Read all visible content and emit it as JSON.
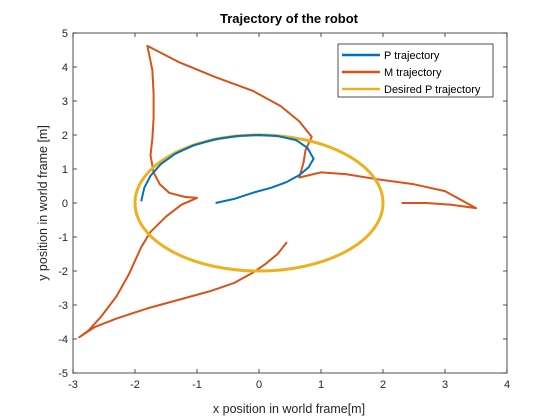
{
  "chart_data": {
    "type": "line",
    "title": "Trajectory of the robot",
    "xlabel": "x position in world frame[m]",
    "ylabel": "y position in world frame [m]",
    "xlim": [
      -3,
      4
    ],
    "ylim": [
      -5,
      5
    ],
    "xticks": [
      "-3",
      "-2",
      "-1",
      "0",
      "1",
      "2",
      "3",
      "4"
    ],
    "yticks": [
      "-5",
      "-4",
      "-3",
      "-2",
      "-1",
      "0",
      "1",
      "2",
      "3",
      "4",
      "5"
    ],
    "grid": false,
    "legend_position": "top-right",
    "series": [
      {
        "name": "P trajectory",
        "color": "#0072BD",
        "points": [
          [
            -0.7,
            0.0
          ],
          [
            -0.4,
            0.12
          ],
          [
            -0.1,
            0.3
          ],
          [
            0.2,
            0.45
          ],
          [
            0.45,
            0.62
          ],
          [
            0.65,
            0.82
          ],
          [
            0.8,
            1.05
          ],
          [
            0.88,
            1.3
          ],
          [
            0.78,
            1.62
          ],
          [
            0.6,
            1.85
          ],
          [
            0.3,
            1.97
          ],
          [
            0.0,
            2.0
          ],
          [
            -0.35,
            1.97
          ],
          [
            -0.7,
            1.88
          ],
          [
            -1.05,
            1.7
          ],
          [
            -1.35,
            1.45
          ],
          [
            -1.58,
            1.15
          ],
          [
            -1.75,
            0.8
          ],
          [
            -1.85,
            0.45
          ],
          [
            -1.9,
            0.05
          ]
        ]
      },
      {
        "name": "M trajectory",
        "color": "#D95319",
        "points": [
          [
            0.45,
            -1.15
          ],
          [
            0.3,
            -1.5
          ],
          [
            0.1,
            -1.8
          ],
          [
            -0.1,
            -2.05
          ],
          [
            -0.4,
            -2.35
          ],
          [
            -0.8,
            -2.6
          ],
          [
            -1.3,
            -2.85
          ],
          [
            -1.8,
            -3.1
          ],
          [
            -2.3,
            -3.4
          ],
          [
            -2.65,
            -3.65
          ],
          [
            -2.9,
            -3.95
          ],
          [
            -2.75,
            -3.75
          ],
          [
            -2.55,
            -3.35
          ],
          [
            -2.3,
            -2.75
          ],
          [
            -2.1,
            -2.1
          ],
          [
            -1.9,
            -1.3
          ],
          [
            -1.75,
            -0.85
          ],
          [
            -1.5,
            -0.4
          ],
          [
            -1.25,
            -0.05
          ],
          [
            -1.0,
            0.15
          ],
          [
            -1.2,
            0.18
          ],
          [
            -1.45,
            0.3
          ],
          [
            -1.6,
            0.55
          ],
          [
            -1.7,
            0.9
          ],
          [
            -1.75,
            1.4
          ],
          [
            -1.72,
            1.9
          ],
          [
            -1.7,
            2.5
          ],
          [
            -1.7,
            3.2
          ],
          [
            -1.72,
            3.9
          ],
          [
            -1.8,
            4.62
          ],
          [
            -1.3,
            4.15
          ],
          [
            -0.7,
            3.7
          ],
          [
            -0.1,
            3.3
          ],
          [
            0.35,
            2.85
          ],
          [
            0.65,
            2.4
          ],
          [
            0.85,
            1.95
          ],
          [
            0.75,
            1.55
          ],
          [
            0.72,
            1.2
          ],
          [
            0.65,
            0.75
          ],
          [
            1.0,
            0.9
          ],
          [
            1.4,
            0.85
          ],
          [
            1.9,
            0.7
          ],
          [
            2.5,
            0.55
          ],
          [
            3.0,
            0.35
          ],
          [
            3.5,
            -0.15
          ],
          [
            3.1,
            -0.05
          ],
          [
            2.7,
            0.0
          ],
          [
            2.3,
            0.0
          ]
        ]
      },
      {
        "name": "Desired P trajectory",
        "color": "#EDB120",
        "circle": {
          "center": [
            0,
            0
          ],
          "radius": 2
        }
      }
    ]
  }
}
